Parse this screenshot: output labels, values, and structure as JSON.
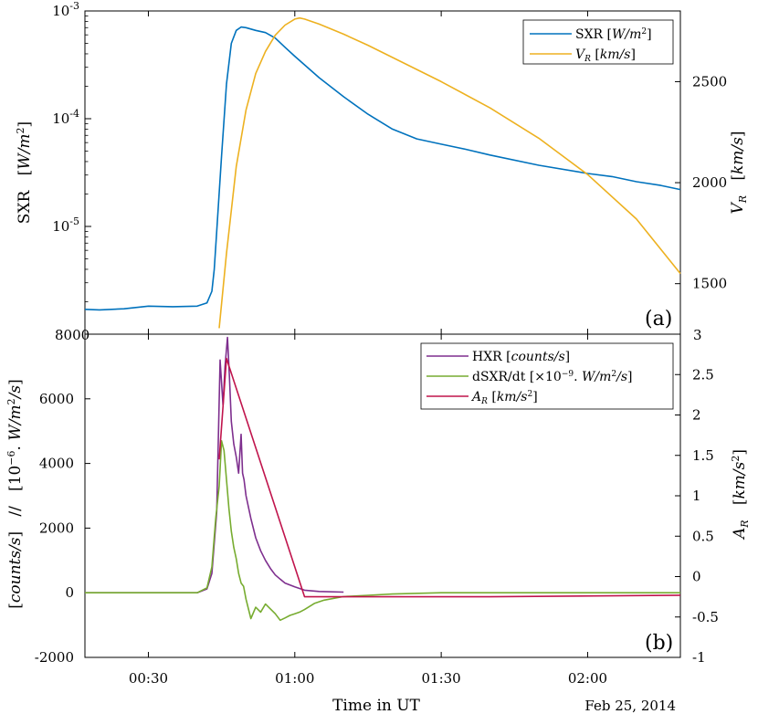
{
  "figure": {
    "x_label": "Time in UT",
    "date_label": "Feb 25, 2014"
  },
  "chart_data": [
    {
      "panel": "(a)",
      "type": "line",
      "x_unit": "minutes after 00:00 UT",
      "xlim": [
        17,
        139
      ],
      "x_ticks": [
        {
          "value": 30,
          "label": "00:30"
        },
        {
          "value": 60,
          "label": "01:00"
        },
        {
          "value": 90,
          "label": "01:30"
        },
        {
          "value": 120,
          "label": "02:00"
        }
      ],
      "left_axis": {
        "label": "SXR   [W/m²]",
        "scale": "log",
        "ylim": [
          1e-06,
          0.001
        ],
        "ticks": [
          {
            "value": 1e-05,
            "base": "10",
            "exp": "-5"
          },
          {
            "value": 0.0001,
            "base": "10",
            "exp": "-4"
          },
          {
            "value": 0.001,
            "base": "10",
            "exp": "-3"
          }
        ]
      },
      "right_axis": {
        "label": "V_R   [km/s]",
        "scale": "linear",
        "ylim": [
          1250,
          2850
        ],
        "ticks": [
          1500,
          2000,
          2500
        ]
      },
      "bottom_left_tick": "8000",
      "bottom_right_tick": "3",
      "series": [
        {
          "name": "SXR [W/m²]",
          "axis": "left",
          "color": "#0072BD",
          "x": [
            17,
            20,
            25,
            30,
            35,
            40,
            42,
            43,
            43.5,
            44,
            45,
            46,
            47,
            48,
            49,
            50,
            52,
            54,
            56,
            58,
            60,
            65,
            70,
            75,
            80,
            85,
            90,
            95,
            100,
            110,
            120,
            125,
            130,
            135,
            139
          ],
          "y": [
            1.7e-06,
            1.68e-06,
            1.72e-06,
            1.82e-06,
            1.8e-06,
            1.82e-06,
            1.95e-06,
            2.5e-06,
            4e-06,
            9e-06,
            4.5e-05,
            0.00021,
            0.0005,
            0.00066,
            0.00071,
            0.0007,
            0.00066,
            0.00063,
            0.00056,
            0.00046,
            0.00038,
            0.00024,
            0.00016,
            0.00011,
            8e-05,
            6.5e-05,
            5.8e-05,
            5.2e-05,
            4.6e-05,
            3.7e-05,
            3.1e-05,
            2.9e-05,
            2.6e-05,
            2.4e-05,
            2.2e-05
          ]
        },
        {
          "name": "V_R [km/s]",
          "axis": "right",
          "color": "#EDB120",
          "x": [
            44.5,
            46,
            48,
            50,
            52,
            54,
            56,
            58,
            60,
            61,
            62,
            65,
            70,
            75,
            80,
            90,
            100,
            110,
            120,
            130,
            139
          ],
          "y": [
            1280,
            1650,
            2080,
            2360,
            2540,
            2650,
            2730,
            2780,
            2810,
            2815,
            2810,
            2785,
            2735,
            2680,
            2620,
            2500,
            2370,
            2220,
            2040,
            1820,
            1550
          ]
        }
      ]
    },
    {
      "panel": "(b)",
      "type": "line",
      "xlim": [
        17,
        139
      ],
      "left_axis": {
        "label": "[counts/s]   //   [10⁻⁶. W/m²/s]",
        "ylim": [
          -2000,
          8000
        ],
        "ticks": [
          -2000,
          0,
          2000,
          4000,
          6000
        ]
      },
      "right_axis": {
        "label": "A_R   [km/s²]",
        "ylim": [
          -1,
          3
        ],
        "ticks": [
          "-1",
          "-0.5",
          "0",
          "0.5",
          "1",
          "1.5",
          "2",
          "2.5"
        ]
      },
      "series": [
        {
          "name": "HXR [counts/s]",
          "axis": "left",
          "color": "#7E2F8E",
          "x": [
            17,
            40,
            42,
            43,
            44,
            44.7,
            45.3,
            45.7,
            46.2,
            46.6,
            47.0,
            47.5,
            48.0,
            48.5,
            49.0,
            49.3,
            49.6,
            50,
            51,
            52,
            53,
            54,
            55,
            56,
            57,
            58,
            60,
            62,
            65,
            70
          ],
          "y": [
            0,
            0,
            120,
            600,
            2500,
            7200,
            5800,
            7000,
            7900,
            6700,
            5300,
            4600,
            4200,
            3700,
            4900,
            3700,
            3500,
            3000,
            2300,
            1700,
            1300,
            1000,
            750,
            550,
            420,
            300,
            180,
            80,
            40,
            20
          ]
        },
        {
          "name": "dSXR/dt [×10⁻⁹. W/m²/s]",
          "axis": "left",
          "color": "#77AC30",
          "x": [
            17,
            40,
            42,
            43,
            43.8,
            44.5,
            45.0,
            45.5,
            46.0,
            46.5,
            47.0,
            47.5,
            48.0,
            48.5,
            49.0,
            49.5,
            50,
            51,
            52,
            53,
            54,
            55,
            56,
            57,
            58,
            59,
            60,
            61,
            62,
            64,
            66,
            70,
            75,
            80,
            90,
            100,
            110,
            120,
            130,
            139
          ],
          "y": [
            0,
            0,
            150,
            800,
            2300,
            3300,
            4700,
            4400,
            3500,
            2600,
            1900,
            1400,
            1050,
            600,
            300,
            200,
            -200,
            -800,
            -450,
            -600,
            -350,
            -500,
            -650,
            -850,
            -780,
            -700,
            -650,
            -600,
            -520,
            -330,
            -230,
            -120,
            -80,
            -40,
            0,
            0,
            0,
            0,
            0,
            0
          ]
        },
        {
          "name": "A_R [km/s²]",
          "axis": "right",
          "color": "#C0144C",
          "x": [
            44.5,
            46,
            62,
            70,
            100,
            139
          ],
          "y": [
            1.45,
            2.7,
            -0.25,
            -0.25,
            -0.25,
            -0.23
          ]
        }
      ]
    }
  ]
}
